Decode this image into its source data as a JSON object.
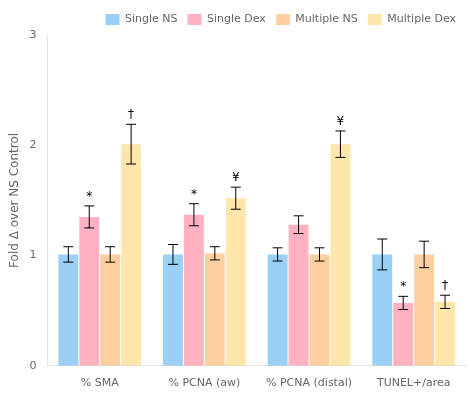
{
  "chart_data": {
    "type": "bar",
    "categories": [
      "% SMA",
      "% PCNA (aw)",
      "% PCNA (distal)",
      "TUNEL+/area"
    ],
    "series": [
      {
        "name": "Single NS",
        "values": [
          1.01,
          1.01,
          1.01,
          1.01
        ],
        "errors": [
          0.07,
          0.09,
          0.06,
          0.14
        ],
        "annotations": [
          null,
          null,
          null,
          null
        ]
      },
      {
        "name": "Single Dex",
        "values": [
          1.35,
          1.37,
          1.28,
          0.57
        ],
        "errors": [
          0.1,
          0.1,
          0.08,
          0.06
        ],
        "annotations": [
          "*",
          "*",
          null,
          "*"
        ]
      },
      {
        "name": "Multiple NS",
        "values": [
          1.01,
          1.02,
          1.01,
          1.01
        ],
        "errors": [
          0.07,
          0.06,
          0.06,
          0.12
        ],
        "annotations": [
          null,
          null,
          null,
          null
        ]
      },
      {
        "name": "Multiple Dex",
        "values": [
          2.01,
          1.52,
          2.01,
          0.58
        ],
        "errors": [
          0.18,
          0.1,
          0.12,
          0.06
        ],
        "annotations": [
          "†",
          "¥",
          "¥",
          "†"
        ]
      }
    ],
    "ylabel": "Fold Δ over NS Control",
    "ylim": [
      0,
      3.0
    ],
    "yticks": [
      0,
      1,
      2,
      3
    ],
    "grid": false,
    "legend": "upper right"
  }
}
